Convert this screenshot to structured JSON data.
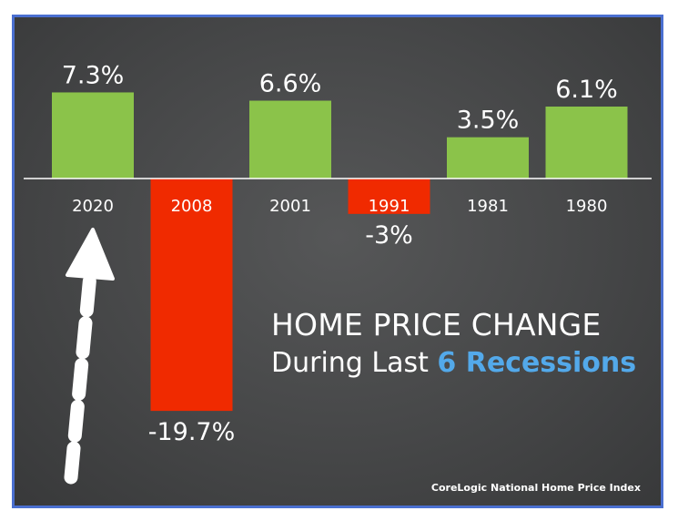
{
  "chart_data": {
    "type": "bar",
    "categories": [
      "2020",
      "2008",
      "2001",
      "1991",
      "1981",
      "1980"
    ],
    "values": [
      7.3,
      -19.7,
      6.6,
      -3,
      3.5,
      6.1
    ],
    "value_labels": [
      "7.3%",
      "-19.7%",
      "6.6%",
      "-3%",
      "3.5%",
      "6.1%"
    ],
    "title": "HOME PRICE CHANGE",
    "subtitle_prefix": "During Last ",
    "subtitle_highlight": "6 Recessions",
    "xlabel": "",
    "ylabel": "",
    "ylim": [
      -19.7,
      7.3
    ],
    "grid": false,
    "legend": "none",
    "colors": {
      "positive": "#8bc34a",
      "negative": "#f02a00",
      "highlight": "#53a9ea",
      "background": "#464748"
    }
  },
  "source": "CoreLogic National Home Price Index"
}
